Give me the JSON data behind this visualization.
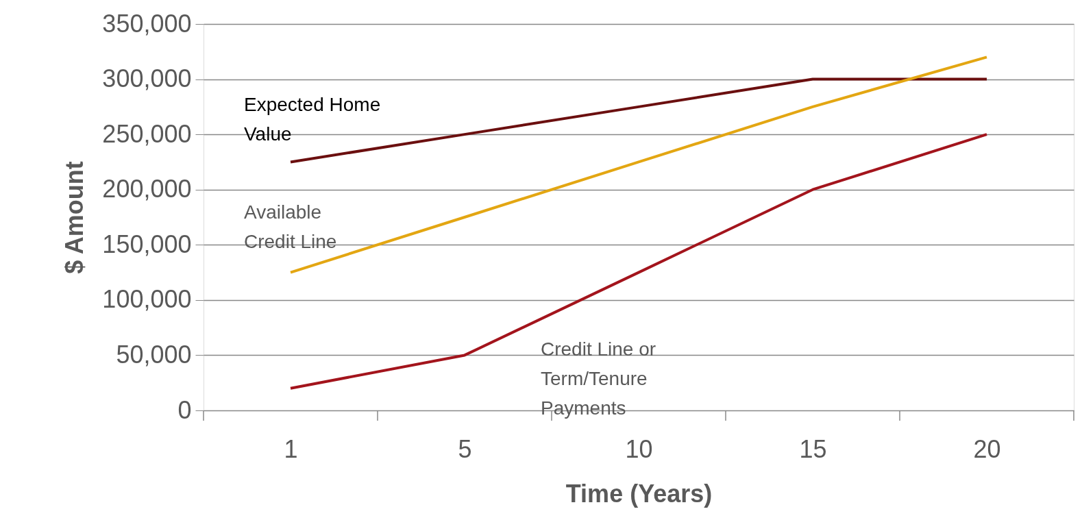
{
  "chart_data": {
    "type": "line",
    "xlabel": "Time (Years)",
    "ylabel": "$ Amount",
    "categories": [
      "1",
      "5",
      "10",
      "15",
      "20"
    ],
    "ylim": [
      0,
      350000
    ],
    "yticks": [
      0,
      {
        "value": 50000,
        "label": "50,000"
      },
      {
        "value": 100000,
        "label": "100,000"
      },
      {
        "value": 150000,
        "label": "150,000"
      },
      {
        "value": 200000,
        "label": "200,000"
      },
      {
        "value": 250000,
        "label": "250,000"
      },
      {
        "value": 300000,
        "label": "300,000"
      },
      {
        "value": 350000,
        "label": "350,000"
      }
    ],
    "grid": "y",
    "legend": false,
    "marker": "none",
    "line_style": "solid",
    "series": [
      {
        "name": "Expected Home Value",
        "color": "#6b0f0f",
        "values": [
          225000,
          250000,
          275000,
          300000,
          300000
        ]
      },
      {
        "name": "Available Credit Line",
        "color": "#e3a612",
        "values": [
          125000,
          175000,
          225000,
          275000,
          320000
        ]
      },
      {
        "name": "Credit Line or Term/Tenure Payments",
        "color": "#a3141c",
        "values": [
          20000,
          50000,
          125000,
          200000,
          250000
        ]
      }
    ]
  }
}
